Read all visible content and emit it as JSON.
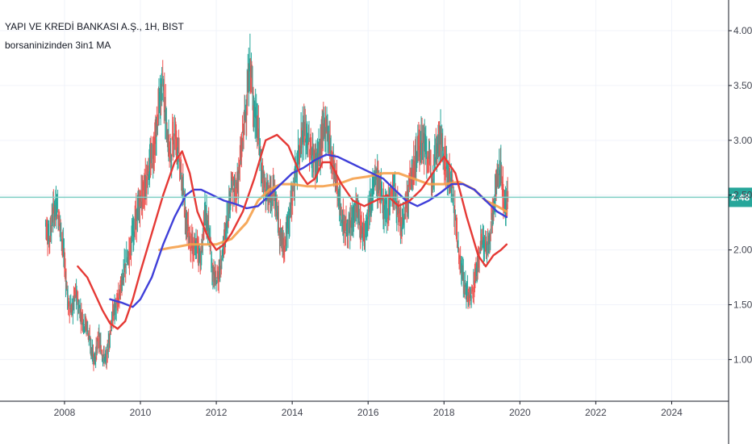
{
  "symbol_title": "YAPI VE KREDİ BANKASI A.Ş., 1H, BIST",
  "indicator_name": "borsaninizinden 3in1 MA",
  "colors": {
    "up": "#26a69a",
    "down": "#ef5350",
    "ma_fast": "#e53935",
    "ma_mid": "#3f3fd9",
    "ma_slow": "#f5a04a",
    "price_line": "#7fcfc4",
    "price_badge": "#26a69a",
    "grid": "#f0f3fa",
    "axis": "#131722"
  },
  "chart_data": {
    "type": "line",
    "title": "YAPI VE KREDİ BANKASI A.Ş., 1H, BIST",
    "xlim": [
      2006.3,
      2025.5
    ],
    "ylim": [
      0.62,
      4.28
    ],
    "x_ticks": [
      2008,
      2010,
      2012,
      2014,
      2016,
      2018,
      2020,
      2022,
      2024
    ],
    "x_tick_labels": [
      "2008",
      "2010",
      "2012",
      "2014",
      "2016",
      "2018",
      "2020",
      "2022",
      "2024"
    ],
    "y_ticks": [
      1.0,
      1.5,
      2.0,
      2.5,
      3.0,
      3.5,
      4.0
    ],
    "y_tick_labels": [
      "1.00",
      "1.50",
      "2.00",
      "2.50",
      "3.00",
      "3.50",
      "4.00"
    ],
    "grid": true,
    "last_price": 2.48,
    "last_price_label": "2.48",
    "series": [
      {
        "key": "price",
        "x": [
          2007.5,
          2007.6,
          2007.7,
          2007.8,
          2007.9,
          2008.0,
          2008.1,
          2008.2,
          2008.3,
          2008.4,
          2008.5,
          2008.6,
          2008.7,
          2008.8,
          2008.9,
          2009.0,
          2009.1,
          2009.2,
          2009.3,
          2009.4,
          2009.5,
          2009.6,
          2009.7,
          2009.8,
          2009.9,
          2010.0,
          2010.1,
          2010.2,
          2010.3,
          2010.4,
          2010.5,
          2010.6,
          2010.7,
          2010.8,
          2010.9,
          2011.0,
          2011.1,
          2011.2,
          2011.3,
          2011.4,
          2011.5,
          2011.6,
          2011.7,
          2011.8,
          2011.9,
          2012.0,
          2012.1,
          2012.2,
          2012.3,
          2012.4,
          2012.5,
          2012.6,
          2012.7,
          2012.8,
          2012.9,
          2013.0,
          2013.1,
          2013.2,
          2013.3,
          2013.4,
          2013.5,
          2013.6,
          2013.7,
          2013.8,
          2013.9,
          2014.0,
          2014.1,
          2014.2,
          2014.3,
          2014.4,
          2014.5,
          2014.6,
          2014.7,
          2014.8,
          2014.9,
          2015.0,
          2015.1,
          2015.2,
          2015.3,
          2015.4,
          2015.5,
          2015.6,
          2015.7,
          2015.8,
          2015.9,
          2016.0,
          2016.1,
          2016.2,
          2016.3,
          2016.4,
          2016.5,
          2016.6,
          2016.7,
          2016.8,
          2016.9,
          2017.0,
          2017.1,
          2017.2,
          2017.3,
          2017.4,
          2017.5,
          2017.6,
          2017.7,
          2017.8,
          2017.9,
          2018.0,
          2018.1,
          2018.2,
          2018.3,
          2018.4,
          2018.5,
          2018.6,
          2018.7,
          2018.8,
          2018.9,
          2019.0,
          2019.1,
          2019.2,
          2019.3,
          2019.4,
          2019.5,
          2019.6,
          2019.7
        ],
        "y": [
          2.25,
          2.1,
          2.35,
          2.4,
          2.2,
          1.9,
          1.5,
          1.45,
          1.6,
          1.45,
          1.35,
          1.3,
          1.1,
          1.0,
          1.2,
          1.05,
          1.0,
          1.25,
          1.45,
          1.5,
          1.7,
          1.85,
          1.95,
          2.15,
          2.3,
          2.45,
          2.55,
          2.7,
          2.85,
          3.0,
          3.35,
          3.55,
          3.05,
          2.85,
          3.1,
          2.9,
          2.6,
          2.3,
          2.1,
          2.0,
          2.05,
          1.9,
          2.35,
          2.2,
          1.8,
          1.7,
          1.85,
          2.05,
          2.3,
          2.6,
          2.5,
          2.7,
          3.05,
          3.35,
          3.7,
          3.25,
          3.1,
          2.7,
          2.55,
          2.45,
          2.6,
          2.35,
          2.1,
          2.05,
          2.25,
          2.5,
          2.7,
          2.95,
          3.1,
          3.0,
          2.9,
          2.8,
          2.85,
          3.05,
          3.15,
          2.95,
          2.75,
          2.55,
          2.3,
          2.2,
          2.15,
          2.3,
          2.4,
          2.2,
          2.15,
          2.35,
          2.5,
          2.65,
          2.6,
          2.4,
          2.35,
          2.5,
          2.55,
          2.3,
          2.2,
          2.4,
          2.6,
          2.75,
          2.9,
          3.0,
          2.95,
          2.8,
          2.7,
          2.95,
          3.05,
          2.85,
          2.7,
          2.6,
          2.3,
          1.95,
          1.75,
          1.6,
          1.55,
          1.7,
          1.9,
          2.1,
          2.0,
          2.05,
          2.4,
          2.65,
          2.75,
          2.4,
          2.48
        ]
      },
      {
        "key": "ma_fast",
        "x": [
          2008.35,
          2008.6,
          2008.8,
          2009.0,
          2009.2,
          2009.4,
          2009.6,
          2009.8,
          2010.0,
          2010.3,
          2010.6,
          2010.9,
          2011.1,
          2011.3,
          2011.5,
          2011.8,
          2012.0,
          2012.2,
          2012.4,
          2012.7,
          2013.0,
          2013.3,
          2013.6,
          2013.9,
          2014.2,
          2014.4,
          2014.6,
          2014.8,
          2015.0,
          2015.3,
          2015.6,
          2015.9,
          2016.2,
          2016.5,
          2016.8,
          2017.1,
          2017.4,
          2017.7,
          2018.0,
          2018.3,
          2018.6,
          2018.9,
          2019.1,
          2019.3,
          2019.5,
          2019.65
        ],
        "y": [
          1.85,
          1.75,
          1.6,
          1.45,
          1.33,
          1.28,
          1.35,
          1.55,
          1.8,
          2.15,
          2.5,
          2.8,
          2.9,
          2.7,
          2.35,
          2.1,
          2.0,
          2.05,
          2.15,
          2.35,
          2.65,
          3.0,
          3.05,
          2.95,
          2.7,
          2.6,
          2.65,
          2.8,
          2.8,
          2.6,
          2.45,
          2.4,
          2.45,
          2.5,
          2.4,
          2.45,
          2.55,
          2.7,
          2.85,
          2.7,
          2.3,
          1.95,
          1.85,
          1.95,
          2.0,
          2.05
        ]
      },
      {
        "key": "ma_mid",
        "x": [
          2009.2,
          2009.5,
          2009.8,
          2010.0,
          2010.3,
          2010.6,
          2010.9,
          2011.2,
          2011.4,
          2011.6,
          2011.9,
          2012.2,
          2012.5,
          2012.8,
          2013.1,
          2013.4,
          2013.7,
          2014.0,
          2014.3,
          2014.6,
          2014.9,
          2015.2,
          2015.5,
          2015.8,
          2016.1,
          2016.4,
          2016.7,
          2017.0,
          2017.3,
          2017.6,
          2017.9,
          2018.2,
          2018.5,
          2018.8,
          2019.1,
          2019.4,
          2019.65
        ],
        "y": [
          1.55,
          1.52,
          1.48,
          1.55,
          1.75,
          2.05,
          2.3,
          2.5,
          2.55,
          2.55,
          2.5,
          2.45,
          2.42,
          2.38,
          2.4,
          2.5,
          2.6,
          2.7,
          2.75,
          2.82,
          2.87,
          2.85,
          2.8,
          2.75,
          2.7,
          2.65,
          2.55,
          2.45,
          2.4,
          2.45,
          2.52,
          2.6,
          2.6,
          2.55,
          2.45,
          2.35,
          2.3
        ]
      },
      {
        "key": "ma_slow",
        "x": [
          2010.5,
          2010.8,
          2011.0,
          2011.3,
          2011.6,
          2012.0,
          2012.4,
          2012.8,
          2013.1,
          2013.4,
          2013.7,
          2014.0,
          2014.4,
          2014.8,
          2015.2,
          2015.6,
          2016.0,
          2016.4,
          2016.8,
          2017.2,
          2017.6,
          2018.0,
          2018.4,
          2018.8,
          2019.1,
          2019.4,
          2019.65
        ],
        "y": [
          2.0,
          2.02,
          2.03,
          2.05,
          2.05,
          2.05,
          2.1,
          2.25,
          2.45,
          2.55,
          2.6,
          2.6,
          2.58,
          2.58,
          2.6,
          2.65,
          2.67,
          2.7,
          2.7,
          2.65,
          2.6,
          2.6,
          2.62,
          2.55,
          2.45,
          2.4,
          2.35
        ]
      }
    ]
  }
}
